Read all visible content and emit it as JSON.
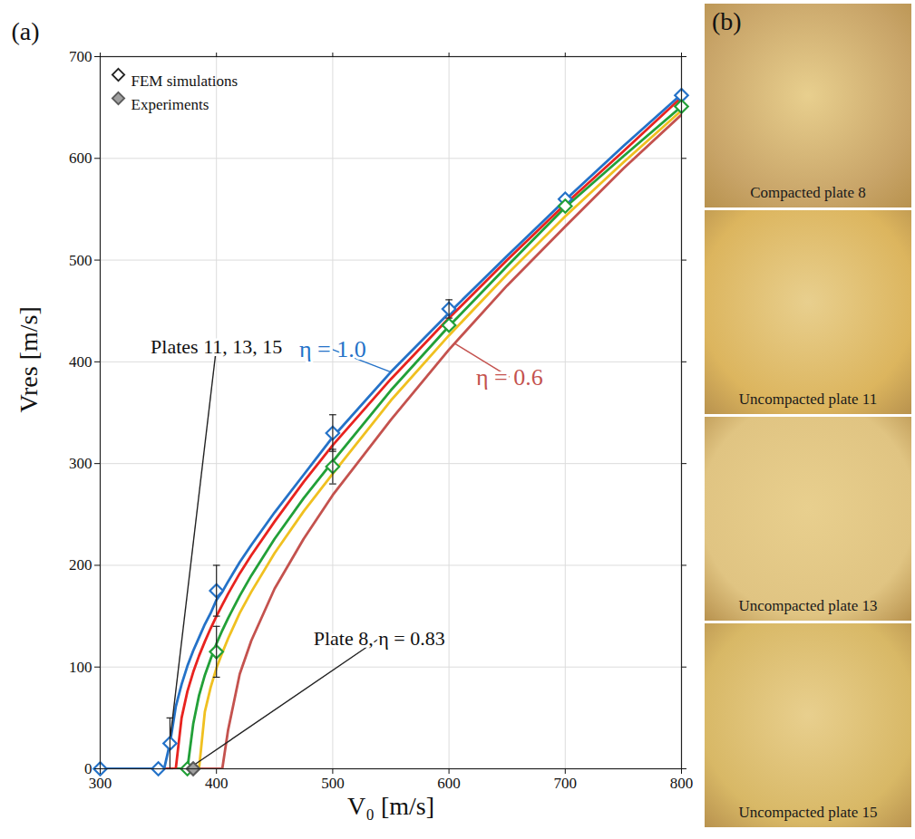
{
  "chart_data": {
    "type": "line",
    "panel": "(a)",
    "x_label": "V₀ [m/s]",
    "y_label": "Vres [m/s]",
    "xlim": [
      300,
      800
    ],
    "ylim": [
      0,
      700
    ],
    "xticks": [
      300,
      400,
      500,
      600,
      700,
      800
    ],
    "yticks": [
      0,
      100,
      200,
      300,
      400,
      500,
      600,
      700
    ],
    "grid": true,
    "legend": "top-left",
    "x": [
      300,
      350,
      355,
      360,
      365,
      370,
      375,
      380,
      385,
      390,
      395,
      400,
      405,
      410,
      420,
      430,
      450,
      475,
      500,
      550,
      600,
      650,
      700,
      750,
      800
    ],
    "series": [
      {
        "color": "#c4524e",
        "values": [
          0,
          0,
          0,
          0,
          0,
          0,
          0,
          0,
          0,
          0,
          0,
          0,
          0,
          38,
          93,
          126,
          177,
          226,
          269,
          343,
          412,
          475,
          533,
          590,
          643
        ]
      },
      {
        "color": "#f0c020",
        "values": [
          0,
          0,
          0,
          0,
          0,
          0,
          0,
          0,
          0,
          56,
          80,
          99,
          114,
          128,
          153,
          174,
          212,
          253,
          290,
          362,
          426,
          486,
          543,
          596,
          647
        ]
      },
      {
        "color": "#22a038",
        "values": [
          0,
          0,
          0,
          0,
          0,
          0,
          0,
          44,
          72,
          92,
          108,
          123,
          136,
          148,
          170,
          190,
          226,
          266,
          302,
          372,
          435,
          494,
          552,
          602,
          651
        ]
      },
      {
        "color": "#e8231f",
        "values": [
          0,
          0,
          0,
          0,
          0,
          50,
          76,
          95,
          111,
          125,
          138,
          150,
          161,
          172,
          192,
          210,
          243,
          282,
          318,
          383,
          443,
          500,
          555,
          607,
          660
        ]
      },
      {
        "color": "#2472c8",
        "values": [
          0,
          0,
          0,
          25,
          61,
          83,
          101,
          116,
          129,
          142,
          153,
          166,
          174,
          184,
          203,
          220,
          252,
          289,
          326,
          390,
          448,
          504,
          559,
          612,
          663
        ]
      }
    ],
    "points": [
      {
        "name": "FEM simulations",
        "type": "scatter",
        "marker": "open_diamond",
        "x": [
          300,
          350,
          360,
          400,
          500,
          600,
          700,
          800,
          375,
          400,
          500,
          600,
          700,
          800
        ],
        "values": [
          0,
          0,
          25,
          175,
          330,
          452,
          560,
          662,
          0,
          115,
          297,
          436,
          553,
          651
        ],
        "colors": [
          "#2472c8",
          "#2472c8",
          "#2472c8",
          "#2472c8",
          "#2472c8",
          "#2472c8",
          "#2472c8",
          "#2472c8",
          "#22a038",
          "#22a038",
          "#22a038",
          "#22a038",
          "#22a038",
          "#22a038"
        ],
        "errors": [
          null,
          null,
          25,
          25,
          18,
          9,
          null,
          null,
          null,
          25,
          17,
          null,
          null,
          null
        ]
      },
      {
        "name": "Experiments",
        "type": "scatter",
        "marker": "diamond",
        "x": [
          380
        ],
        "values": [
          0
        ],
        "colors": [
          "#a0a0a0"
        ],
        "errors": [
          null
        ]
      }
    ],
    "annotations": [
      {
        "text": "η = 1.0",
        "x": 500,
        "y": 412,
        "color": "#2472c8",
        "target": [
          550,
          390
        ]
      },
      {
        "text": "η = 0.6",
        "x": 652,
        "y": 385,
        "color": "#c4524e",
        "target": [
          605,
          418
        ]
      },
      {
        "text": "Plates 11, 13, 15",
        "x": 400,
        "y": 415,
        "target": [
          360,
          28
        ]
      },
      {
        "text": "Plate 8, η = 0.83",
        "x": 540,
        "y": 128,
        "target": [
          381,
          4
        ]
      }
    ]
  },
  "panel_b": {
    "label": "(b)",
    "photos": [
      "Compacted plate 8",
      "Uncompacted plate 11",
      "Uncompacted plate 13",
      "Uncompacted plate 15"
    ]
  }
}
